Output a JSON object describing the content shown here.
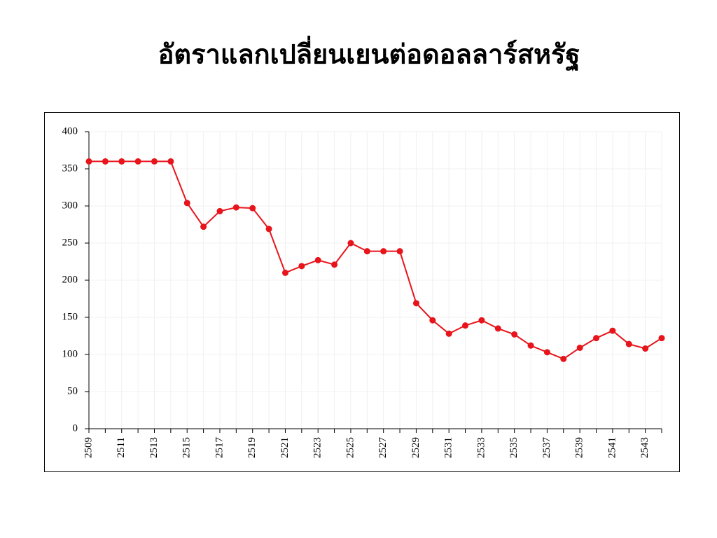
{
  "chart_data": {
    "type": "line",
    "title": "อัตราแลกเปลี่ยนเยนต่อดอลลาร์สหรัฐ",
    "categories": [
      "2509",
      null,
      "2511",
      null,
      "2513",
      null,
      "2515",
      null,
      "2517",
      null,
      "2519",
      null,
      "2521",
      null,
      "2523",
      null,
      "2525",
      null,
      "2527",
      null,
      "2529",
      null,
      "2531",
      null,
      "2533",
      null,
      "2535",
      null,
      "2537",
      null,
      "2539",
      null,
      "2541",
      null,
      "2543",
      null
    ],
    "values": [
      360,
      360,
      360,
      360,
      360,
      360,
      304,
      272,
      293,
      298,
      297,
      269,
      210,
      219,
      227,
      221,
      250,
      239,
      239,
      239,
      169,
      146,
      128,
      139,
      146,
      135,
      127,
      112,
      103,
      94,
      109,
      122,
      132,
      114,
      108,
      122
    ],
    "color": "#e8141b",
    "ylim": [
      0,
      400
    ],
    "yticks": [
      0,
      50,
      100,
      150,
      200,
      250,
      300,
      350,
      400
    ],
    "grid": true
  }
}
